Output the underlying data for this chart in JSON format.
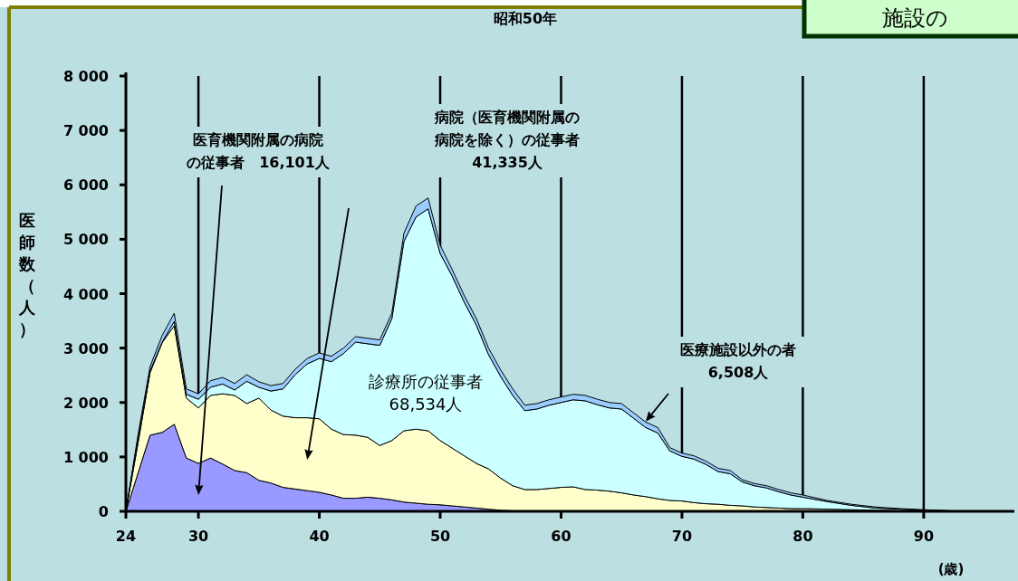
{
  "chart_data": {
    "type": "area",
    "stacked": true,
    "title": "昭和50年",
    "ylabel": "医師数（人）",
    "xlabel": "(歳)",
    "x": [
      24,
      25,
      26,
      27,
      28,
      29,
      30,
      31,
      32,
      33,
      34,
      35,
      36,
      37,
      38,
      39,
      40,
      41,
      42,
      43,
      44,
      45,
      46,
      47,
      48,
      49,
      50,
      51,
      52,
      53,
      54,
      55,
      56,
      57,
      58,
      59,
      60,
      61,
      62,
      63,
      64,
      65,
      66,
      67,
      68,
      69,
      70,
      71,
      72,
      73,
      74,
      75,
      76,
      77,
      78,
      79,
      80,
      82,
      84,
      86,
      88,
      90,
      92,
      95
    ],
    "series": [
      {
        "color": "#9999ff",
        "values": [
          0,
          700,
          1400,
          1450,
          1600,
          980,
          880,
          980,
          870,
          750,
          710,
          570,
          520,
          440,
          410,
          380,
          350,
          300,
          240,
          240,
          260,
          240,
          210,
          170,
          150,
          130,
          120,
          100,
          80,
          60,
          40,
          20,
          10,
          0,
          0,
          0,
          0,
          0,
          0,
          0,
          0,
          0,
          0,
          0,
          0,
          0,
          0,
          0,
          0,
          0,
          0,
          0,
          0,
          0,
          0,
          0,
          0,
          0,
          0,
          0,
          0,
          0,
          0,
          0
        ]
      },
      {
        "color": "#ffffcc",
        "values": [
          0,
          550,
          1150,
          1650,
          1810,
          1100,
          1020,
          1150,
          1290,
          1380,
          1270,
          1510,
          1340,
          1310,
          1310,
          1340,
          1350,
          1210,
          1170,
          1160,
          1100,
          970,
          1090,
          1310,
          1360,
          1350,
          1180,
          1060,
          940,
          820,
          740,
          590,
          460,
          400,
          400,
          420,
          440,
          450,
          400,
          390,
          370,
          340,
          300,
          270,
          230,
          200,
          190,
          160,
          140,
          130,
          110,
          100,
          80,
          70,
          60,
          50,
          50,
          40,
          30,
          20,
          10,
          0,
          0,
          0
        ]
      },
      {
        "color": "#ccffff",
        "values": [
          0,
          90,
          30,
          10,
          80,
          70,
          160,
          150,
          180,
          100,
          410,
          200,
          350,
          500,
          790,
          990,
          1110,
          1240,
          1490,
          1710,
          1720,
          1840,
          2240,
          3480,
          3900,
          4080,
          3440,
          3160,
          2820,
          2540,
          2100,
          1870,
          1660,
          1450,
          1480,
          1530,
          1560,
          1600,
          1630,
          1570,
          1530,
          1540,
          1410,
          1270,
          1210,
          910,
          820,
          800,
          720,
          600,
          580,
          440,
          390,
          360,
          300,
          250,
          210,
          140,
          80,
          40,
          30,
          20,
          10,
          0
        ]
      },
      {
        "color": "#99ccff",
        "values": [
          0,
          60,
          80,
          120,
          150,
          100,
          100,
          120,
          120,
          120,
          120,
          100,
          100,
          100,
          100,
          100,
          100,
          100,
          100,
          100,
          100,
          100,
          100,
          150,
          200,
          200,
          150,
          120,
          120,
          120,
          120,
          120,
          120,
          100,
          100,
          100,
          100,
          100,
          100,
          100,
          100,
          100,
          100,
          100,
          100,
          60,
          60,
          60,
          60,
          60,
          60,
          40,
          40,
          40,
          40,
          40,
          40,
          20,
          20,
          20,
          10,
          10,
          0,
          0
        ]
      }
    ],
    "xlim": [
      24,
      97.5
    ],
    "xticks": [
      24,
      30,
      40,
      50,
      60,
      70,
      80,
      90
    ],
    "ylim": [
      0,
      8000
    ],
    "yticks": [
      0,
      {
        "value": 1000,
        "label": "1 000"
      },
      {
        "value": 2000,
        "label": "2 000"
      },
      {
        "value": 3000,
        "label": "3 000"
      },
      {
        "value": 4000,
        "label": "4 000"
      },
      {
        "value": 5000,
        "label": "5 000"
      },
      {
        "value": 6000,
        "label": "6 000"
      },
      {
        "value": 7000,
        "label": "7 000"
      },
      {
        "value": 8000,
        "label": "8 000"
      }
    ],
    "grid": "x",
    "annotations": [
      "医育機関附属の病院の従事者　16,101人",
      "病院（医育機関附属の病院を除く）の従事者41,335人",
      "診療所の従事者68,534人",
      "医療施設以外の者6,508人",
      "施設の"
    ]
  }
}
